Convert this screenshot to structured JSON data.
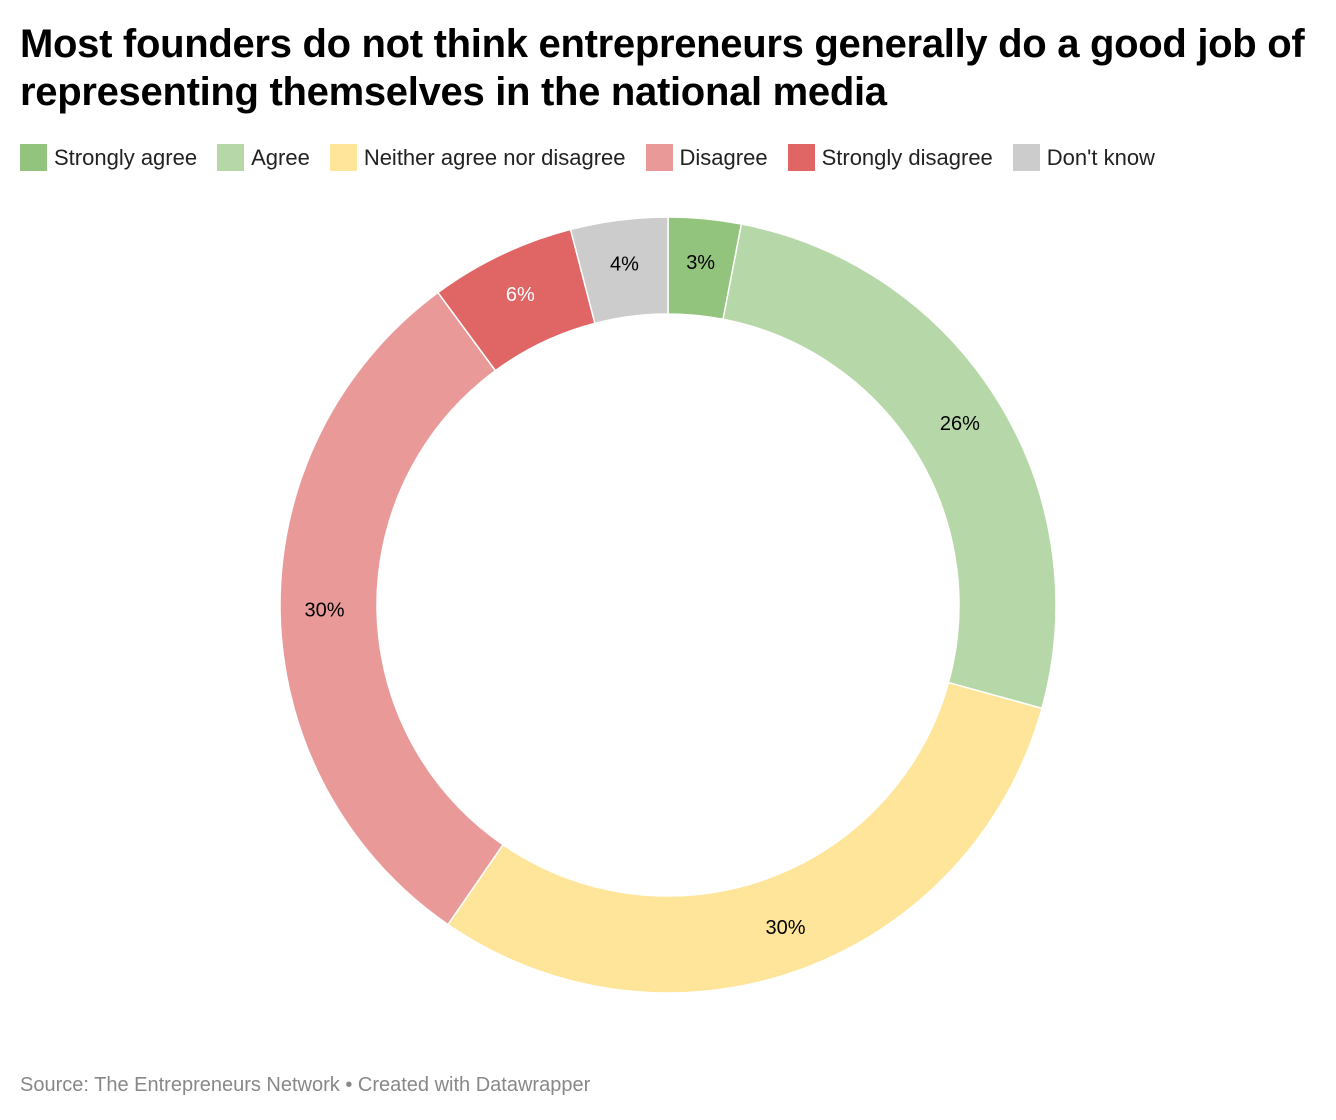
{
  "chart_data": {
    "type": "pie",
    "title": "Most founders do not think entrepreneurs generally do a good job of representing themselves in the national media",
    "categories": [
      "Strongly agree",
      "Agree",
      "Neither agree nor disagree",
      "Disagree",
      "Strongly disagree",
      "Don't know"
    ],
    "values": [
      3,
      26,
      30,
      30,
      6,
      4
    ],
    "value_labels": [
      "3%",
      "26%",
      "30%",
      "30%",
      "6%",
      "4%"
    ],
    "colors": [
      "#93c47d",
      "#b6d7a8",
      "#ffe599",
      "#ea9999",
      "#e06666",
      "#cccccc"
    ],
    "label_colors": [
      "#000000",
      "#000000",
      "#000000",
      "#000000",
      "#ffffff",
      "#000000"
    ],
    "legend_position": "top-left",
    "donut": true
  },
  "footer": {
    "source": "Source: The Entrepreneurs Network • Created with Datawrapper"
  }
}
